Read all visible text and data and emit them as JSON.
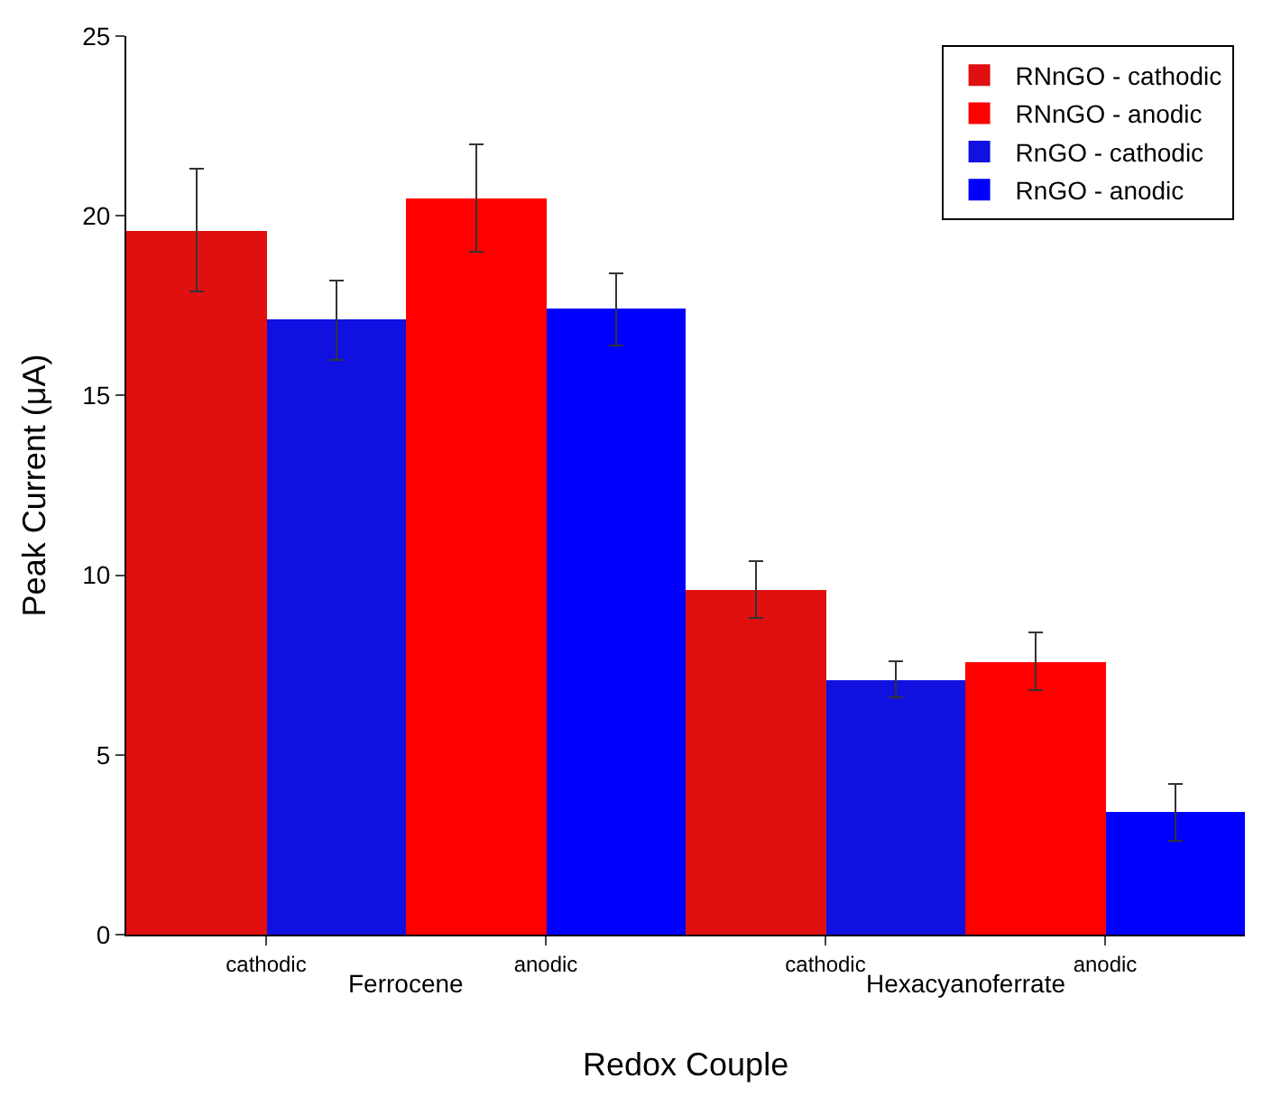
{
  "chart_data": {
    "type": "bar",
    "xlabel": "Redox Couple",
    "ylabel": "Peak Current (μA)",
    "categories": [
      "cathodic",
      "anodic",
      "cathodic",
      "anodic"
    ],
    "series": [
      {
        "name": "RNnGO - cathodic",
        "color": "#e01010",
        "values": [
          19.6,
          null,
          9.6,
          null
        ],
        "errors": [
          1.7,
          null,
          0.8,
          null
        ]
      },
      {
        "name": "RNnGO - anodic",
        "color": "#ff0000",
        "values": [
          null,
          20.5,
          null,
          7.6
        ],
        "errors": [
          null,
          1.5,
          null,
          0.8
        ]
      },
      {
        "name": "RnGO - cathodic",
        "color": "#1010e0",
        "values": [
          17.1,
          null,
          7.1,
          null
        ],
        "errors": [
          1.1,
          null,
          0.5,
          null
        ]
      },
      {
        "name": "RnGO - anodic",
        "color": "#0000ff",
        "values": [
          null,
          17.4,
          null,
          3.4
        ],
        "errors": [
          null,
          1.0,
          null,
          0.8
        ]
      }
    ],
    "annotations": [
      "Ferrocene",
      "Hexacyanoferrate"
    ],
    "ylim": [
      0,
      25
    ],
    "yticks": [
      0,
      5,
      10,
      15,
      20,
      25
    ],
    "legend": "top right"
  }
}
